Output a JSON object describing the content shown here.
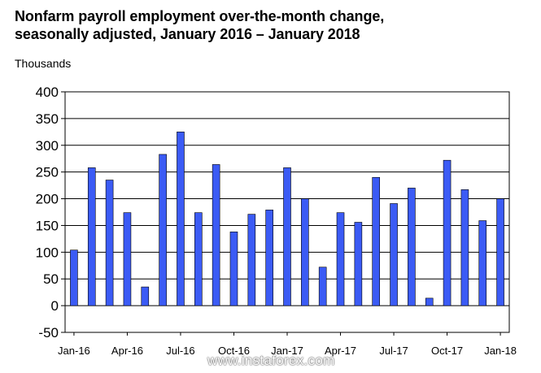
{
  "chart_data": {
    "type": "bar",
    "title": "Nonfarm payroll employment over-the-month change, seasonally adjusted, January 2016 – January 2018",
    "title_line1": "Nonfarm payroll employment over-the-month change,",
    "title_line2": "seasonally adjusted, January 2016 – January 2018",
    "ylabel": "Thousands",
    "xlabel": "",
    "ylim": [
      -50,
      400
    ],
    "yticks": [
      -50,
      0,
      50,
      100,
      150,
      200,
      250,
      300,
      350,
      400
    ],
    "grid": true,
    "bar_color": "#3b5bf5",
    "categories": [
      "Jan-16",
      "Feb-16",
      "Mar-16",
      "Apr-16",
      "May-16",
      "Jun-16",
      "Jul-16",
      "Aug-16",
      "Sep-16",
      "Oct-16",
      "Nov-16",
      "Dec-16",
      "Jan-17",
      "Feb-17",
      "Mar-17",
      "Apr-17",
      "May-17",
      "Jun-17",
      "Jul-17",
      "Aug-17",
      "Sep-17",
      "Oct-17",
      "Nov-17",
      "Dec-17",
      "Jan-18"
    ],
    "values": [
      104,
      258,
      235,
      174,
      35,
      283,
      325,
      174,
      264,
      138,
      171,
      179,
      258,
      200,
      72,
      174,
      156,
      240,
      191,
      220,
      14,
      272,
      217,
      159,
      200
    ],
    "x_tick_labels": [
      {
        "index": 0,
        "label": "Jan-16"
      },
      {
        "index": 3,
        "label": "Apr-16"
      },
      {
        "index": 6,
        "label": "Jul-16"
      },
      {
        "index": 9,
        "label": "Oct-16"
      },
      {
        "index": 12,
        "label": "Jan-17"
      },
      {
        "index": 15,
        "label": "Apr-17"
      },
      {
        "index": 18,
        "label": "Jul-17"
      },
      {
        "index": 21,
        "label": "Oct-17"
      },
      {
        "index": 24,
        "label": "Jan-18"
      }
    ]
  },
  "watermark": "www.instaforex.com"
}
